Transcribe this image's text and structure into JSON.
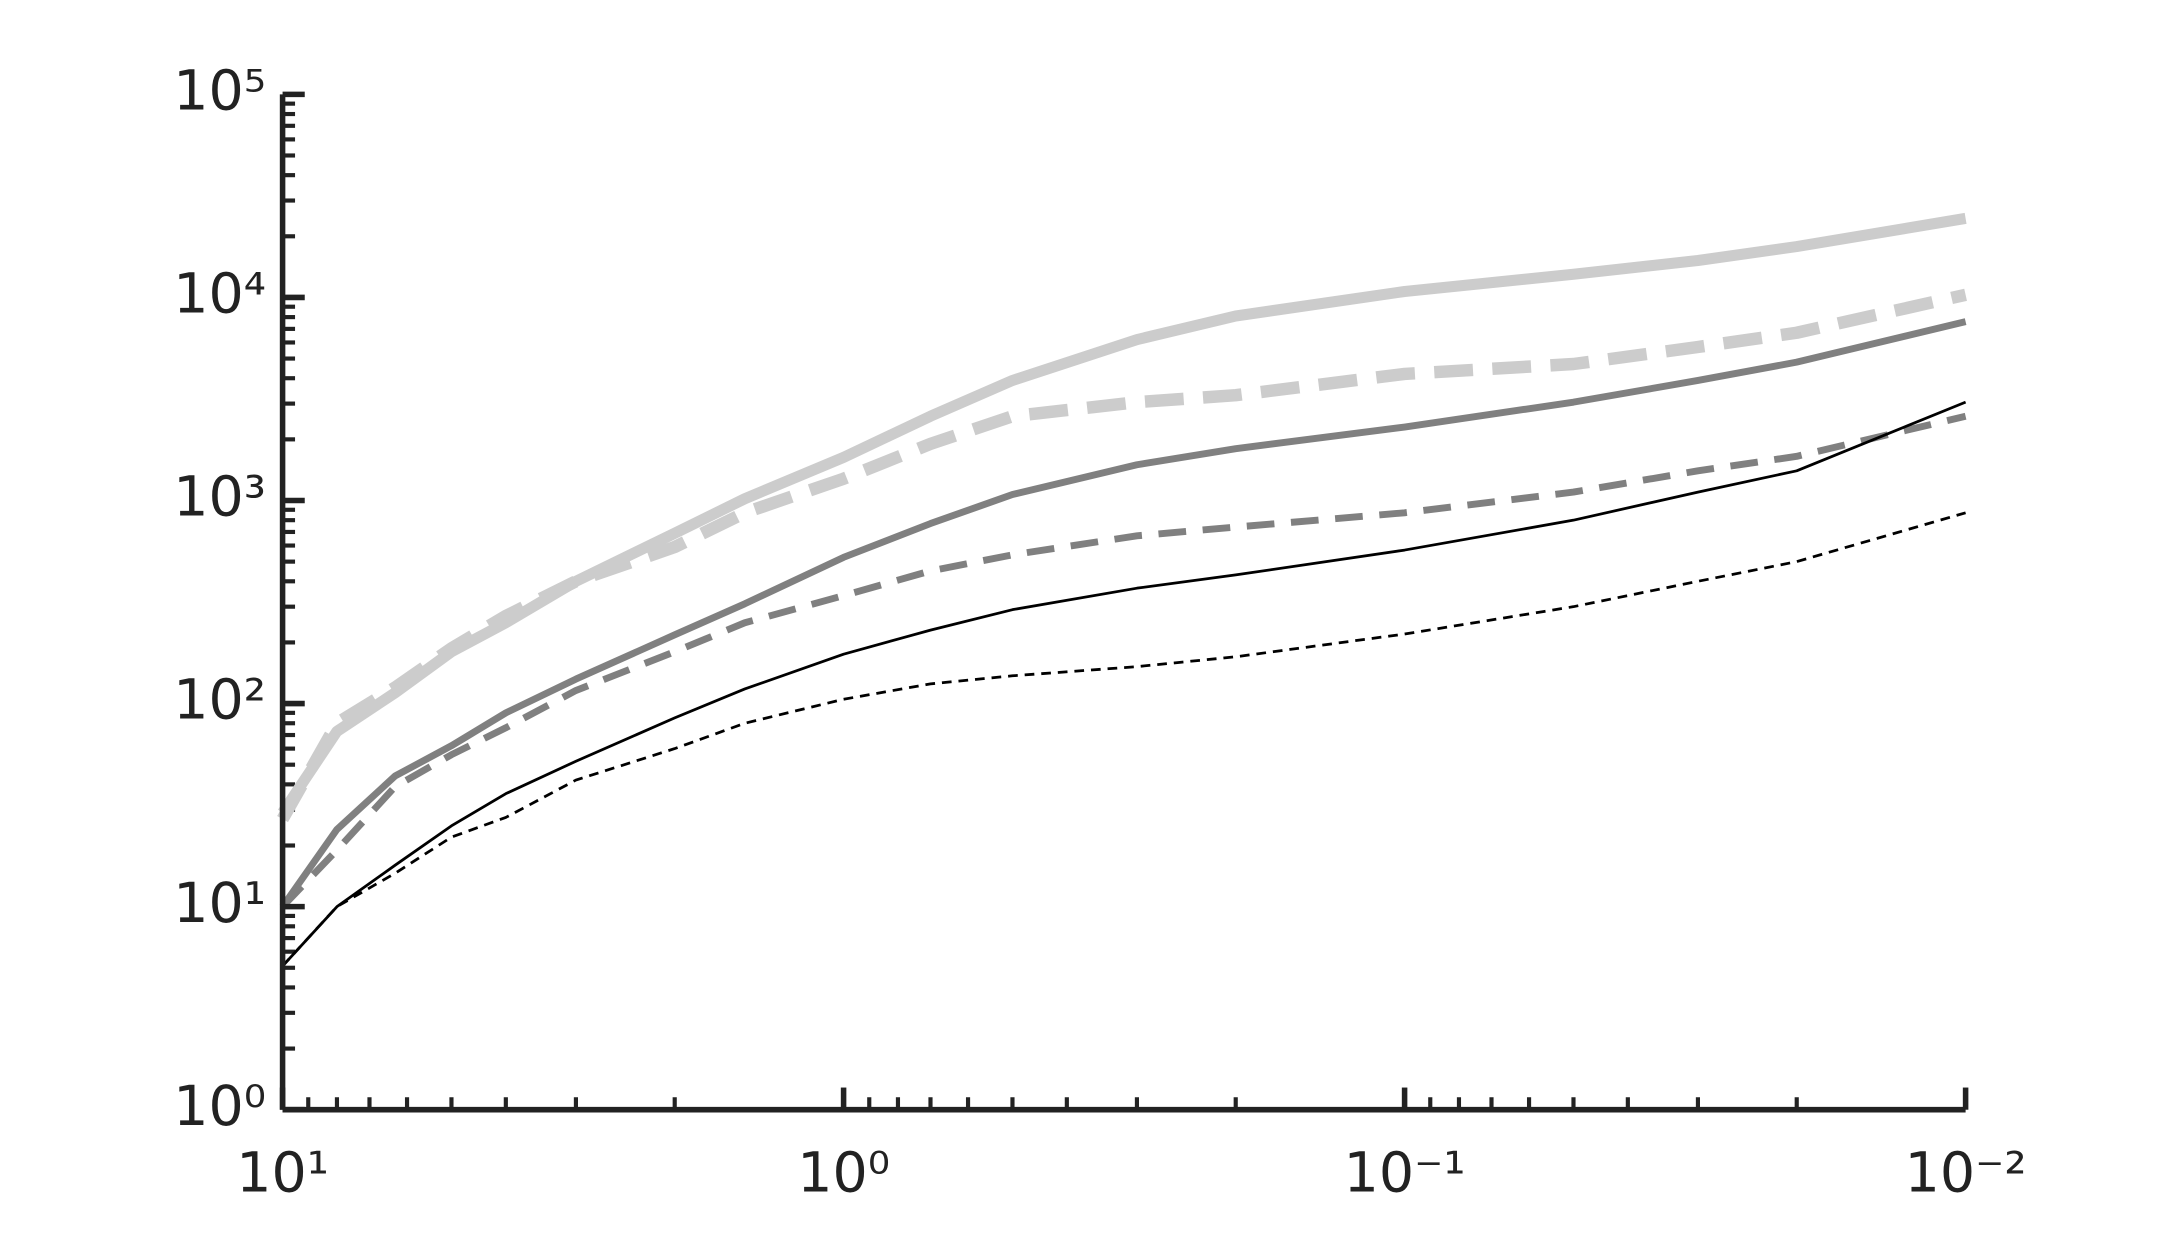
{
  "chart_data": {
    "type": "line",
    "x": [
      10,
      8,
      6.3,
      5,
      4,
      3,
      2,
      1.5,
      1,
      0.7,
      0.5,
      0.3,
      0.2,
      0.1,
      0.05,
      0.03,
      0.02,
      0.01
    ],
    "series": [
      {
        "color": "#cccccc",
        "line_width": 8,
        "dash": null,
        "values": [
          29,
          73,
          113,
          180,
          250,
          400,
          690,
          1020,
          1630,
          2600,
          3900,
          6200,
          8100,
          10700,
          13000,
          15200,
          17800,
          24500
        ]
      },
      {
        "color": "#cccccc",
        "line_width": 9,
        "dash": [
          28,
          14
        ],
        "values": [
          27,
          80,
          120,
          187,
          270,
          400,
          590,
          870,
          1280,
          1900,
          2600,
          3050,
          3300,
          4200,
          4700,
          5700,
          6700,
          10300
        ]
      },
      {
        "color": "#808080",
        "line_width": 5,
        "dash": null,
        "values": [
          10,
          24,
          44,
          62,
          90,
          132,
          218,
          310,
          525,
          770,
          1070,
          1500,
          1800,
          2300,
          3050,
          3900,
          4800,
          7600
        ]
      },
      {
        "color": "#808080",
        "line_width": 5,
        "dash": [
          20,
          12
        ],
        "values": [
          10,
          19,
          39,
          56,
          76,
          116,
          180,
          250,
          340,
          450,
          540,
          670,
          740,
          870,
          1100,
          1400,
          1650,
          2600
        ]
      },
      {
        "color": "#000000",
        "line_width": 2,
        "dash": null,
        "values": [
          5.1,
          10,
          16,
          25,
          36,
          52,
          85,
          118,
          175,
          230,
          290,
          370,
          430,
          570,
          800,
          1100,
          1400,
          3050
        ]
      },
      {
        "color": "#000000",
        "line_width": 2,
        "dash": [
          7,
          5
        ],
        "values": [
          5.1,
          10,
          14.6,
          22,
          27.5,
          42,
          60,
          80,
          105,
          125,
          137,
          152,
          170,
          220,
          300,
          400,
          500,
          870
        ]
      }
    ],
    "xscale": "log",
    "yscale": "log",
    "xlim": [
      10,
      0.01
    ],
    "ylim": [
      1,
      100000
    ],
    "xticks": [
      {
        "value": 10,
        "label": "10¹"
      },
      {
        "value": 1,
        "label": "10⁰"
      },
      {
        "value": 0.1,
        "label": "10⁻¹"
      },
      {
        "value": 0.01,
        "label": "10⁻²"
      }
    ],
    "yticks": [
      {
        "value": 1,
        "label": "10⁰"
      },
      {
        "value": 10,
        "label": "10¹"
      },
      {
        "value": 100,
        "label": "10²"
      },
      {
        "value": 1000,
        "label": "10³"
      },
      {
        "value": 10000,
        "label": "10⁴"
      },
      {
        "value": 100000,
        "label": "10⁵"
      }
    ],
    "minor_ticks": true,
    "grid": false
  }
}
